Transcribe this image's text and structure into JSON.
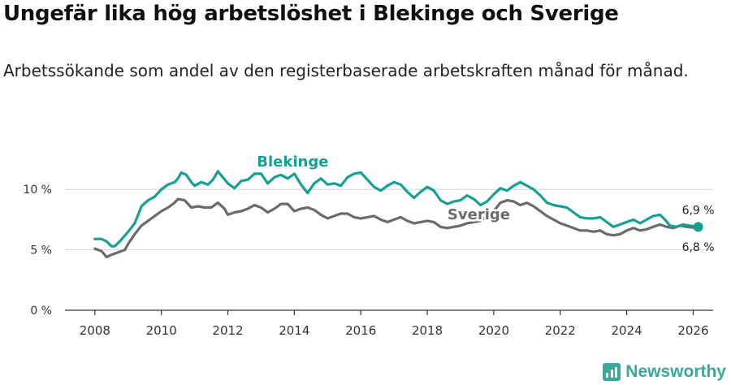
{
  "title": "Ungefär lika hög arbetslöshet i Blekinge och Sverige",
  "subtitle": "Arbetssökande som andel av den registerbaserade arbetskraften månad för månad.",
  "brand": {
    "name": "Newsworthy",
    "icon": "newsworthy-logo-icon",
    "color": "#3aa89a"
  },
  "chart_data": {
    "type": "line",
    "title": "Ungefär lika hög arbetslöshet i Blekinge och Sverige",
    "xlabel": "",
    "ylabel": "",
    "x_range": [
      2007.1,
      2026.6
    ],
    "ylim": [
      0,
      12.5
    ],
    "x_ticks": [
      2008,
      2010,
      2012,
      2014,
      2016,
      2018,
      2020,
      2022,
      2024,
      2026
    ],
    "x_tick_labels": [
      "2008",
      "2010",
      "2012",
      "2014",
      "2016",
      "2018",
      "2020",
      "2022",
      "2024",
      "2026"
    ],
    "y_ticks": [
      0,
      5,
      10
    ],
    "y_tick_labels": [
      "0 %",
      "5 %",
      "10 %"
    ],
    "grid": "horizontal",
    "series": [
      {
        "name": "Blekinge",
        "color": "#16a093",
        "end_label": "6,9 %",
        "points": [
          [
            2008.0,
            5.9
          ],
          [
            2008.2,
            5.9
          ],
          [
            2008.35,
            5.7
          ],
          [
            2008.5,
            5.3
          ],
          [
            2008.6,
            5.3
          ],
          [
            2008.75,
            5.7
          ],
          [
            2009.0,
            6.5
          ],
          [
            2009.2,
            7.2
          ],
          [
            2009.4,
            8.6
          ],
          [
            2009.6,
            9.1
          ],
          [
            2009.8,
            9.4
          ],
          [
            2010.0,
            10.0
          ],
          [
            2010.2,
            10.4
          ],
          [
            2010.4,
            10.6
          ],
          [
            2010.5,
            10.9
          ],
          [
            2010.6,
            11.4
          ],
          [
            2010.75,
            11.2
          ],
          [
            2010.9,
            10.6
          ],
          [
            2011.0,
            10.3
          ],
          [
            2011.2,
            10.6
          ],
          [
            2011.4,
            10.4
          ],
          [
            2011.55,
            10.8
          ],
          [
            2011.7,
            11.5
          ],
          [
            2011.85,
            11.0
          ],
          [
            2012.0,
            10.5
          ],
          [
            2012.2,
            10.1
          ],
          [
            2012.4,
            10.7
          ],
          [
            2012.6,
            10.8
          ],
          [
            2012.8,
            11.3
          ],
          [
            2013.0,
            11.3
          ],
          [
            2013.2,
            10.5
          ],
          [
            2013.4,
            11.0
          ],
          [
            2013.6,
            11.2
          ],
          [
            2013.8,
            10.9
          ],
          [
            2014.0,
            11.3
          ],
          [
            2014.2,
            10.4
          ],
          [
            2014.4,
            9.7
          ],
          [
            2014.6,
            10.5
          ],
          [
            2014.8,
            10.9
          ],
          [
            2015.0,
            10.4
          ],
          [
            2015.2,
            10.5
          ],
          [
            2015.4,
            10.3
          ],
          [
            2015.6,
            11.0
          ],
          [
            2015.8,
            11.3
          ],
          [
            2016.0,
            11.4
          ],
          [
            2016.2,
            10.8
          ],
          [
            2016.4,
            10.2
          ],
          [
            2016.6,
            9.9
          ],
          [
            2016.8,
            10.3
          ],
          [
            2017.0,
            10.6
          ],
          [
            2017.2,
            10.4
          ],
          [
            2017.4,
            9.8
          ],
          [
            2017.6,
            9.3
          ],
          [
            2017.8,
            9.8
          ],
          [
            2018.0,
            10.2
          ],
          [
            2018.2,
            9.9
          ],
          [
            2018.4,
            9.1
          ],
          [
            2018.6,
            8.8
          ],
          [
            2018.8,
            9.0
          ],
          [
            2019.0,
            9.1
          ],
          [
            2019.2,
            9.5
          ],
          [
            2019.4,
            9.2
          ],
          [
            2019.6,
            8.7
          ],
          [
            2019.8,
            9.0
          ],
          [
            2020.0,
            9.6
          ],
          [
            2020.2,
            10.1
          ],
          [
            2020.4,
            9.9
          ],
          [
            2020.6,
            10.3
          ],
          [
            2020.8,
            10.6
          ],
          [
            2021.0,
            10.3
          ],
          [
            2021.2,
            10.0
          ],
          [
            2021.4,
            9.5
          ],
          [
            2021.6,
            8.9
          ],
          [
            2021.8,
            8.7
          ],
          [
            2022.0,
            8.6
          ],
          [
            2022.2,
            8.5
          ],
          [
            2022.4,
            8.1
          ],
          [
            2022.6,
            7.7
          ],
          [
            2022.8,
            7.6
          ],
          [
            2023.0,
            7.6
          ],
          [
            2023.2,
            7.7
          ],
          [
            2023.4,
            7.3
          ],
          [
            2023.6,
            6.9
          ],
          [
            2023.8,
            7.1
          ],
          [
            2024.0,
            7.3
          ],
          [
            2024.2,
            7.5
          ],
          [
            2024.4,
            7.2
          ],
          [
            2024.6,
            7.5
          ],
          [
            2024.8,
            7.8
          ],
          [
            2025.0,
            7.9
          ],
          [
            2025.15,
            7.5
          ],
          [
            2025.3,
            7.0
          ],
          [
            2025.5,
            6.9
          ],
          [
            2025.7,
            7.1
          ],
          [
            2025.9,
            7.0
          ],
          [
            2026.15,
            6.9
          ]
        ]
      },
      {
        "name": "Sverige",
        "color": "#6b6b6b",
        "end_label": "6,8 %",
        "points": [
          [
            2008.0,
            5.1
          ],
          [
            2008.2,
            4.9
          ],
          [
            2008.35,
            4.4
          ],
          [
            2008.5,
            4.6
          ],
          [
            2008.7,
            4.8
          ],
          [
            2008.9,
            5.0
          ],
          [
            2009.0,
            5.5
          ],
          [
            2009.2,
            6.3
          ],
          [
            2009.4,
            7.0
          ],
          [
            2009.6,
            7.4
          ],
          [
            2009.8,
            7.8
          ],
          [
            2010.0,
            8.2
          ],
          [
            2010.2,
            8.5
          ],
          [
            2010.4,
            8.9
          ],
          [
            2010.5,
            9.2
          ],
          [
            2010.7,
            9.1
          ],
          [
            2010.9,
            8.5
          ],
          [
            2011.1,
            8.6
          ],
          [
            2011.3,
            8.5
          ],
          [
            2011.5,
            8.5
          ],
          [
            2011.7,
            8.9
          ],
          [
            2011.9,
            8.4
          ],
          [
            2012.0,
            7.9
          ],
          [
            2012.2,
            8.1
          ],
          [
            2012.4,
            8.2
          ],
          [
            2012.6,
            8.4
          ],
          [
            2012.8,
            8.7
          ],
          [
            2013.0,
            8.5
          ],
          [
            2013.2,
            8.1
          ],
          [
            2013.4,
            8.4
          ],
          [
            2013.6,
            8.8
          ],
          [
            2013.8,
            8.8
          ],
          [
            2014.0,
            8.2
          ],
          [
            2014.2,
            8.4
          ],
          [
            2014.4,
            8.5
          ],
          [
            2014.6,
            8.3
          ],
          [
            2014.8,
            7.9
          ],
          [
            2015.0,
            7.6
          ],
          [
            2015.2,
            7.8
          ],
          [
            2015.4,
            8.0
          ],
          [
            2015.6,
            8.0
          ],
          [
            2015.8,
            7.7
          ],
          [
            2016.0,
            7.6
          ],
          [
            2016.2,
            7.7
          ],
          [
            2016.4,
            7.8
          ],
          [
            2016.6,
            7.5
          ],
          [
            2016.8,
            7.3
          ],
          [
            2017.0,
            7.5
          ],
          [
            2017.2,
            7.7
          ],
          [
            2017.4,
            7.4
          ],
          [
            2017.6,
            7.2
          ],
          [
            2017.8,
            7.3
          ],
          [
            2018.0,
            7.4
          ],
          [
            2018.2,
            7.3
          ],
          [
            2018.4,
            6.9
          ],
          [
            2018.6,
            6.8
          ],
          [
            2018.8,
            6.9
          ],
          [
            2019.0,
            7.0
          ],
          [
            2019.2,
            7.2
          ],
          [
            2019.4,
            7.3
          ],
          [
            2019.6,
            7.4
          ],
          [
            2019.8,
            7.8
          ],
          [
            2020.0,
            8.2
          ],
          [
            2020.2,
            8.9
          ],
          [
            2020.4,
            9.1
          ],
          [
            2020.6,
            9.0
          ],
          [
            2020.8,
            8.7
          ],
          [
            2021.0,
            8.9
          ],
          [
            2021.2,
            8.6
          ],
          [
            2021.4,
            8.2
          ],
          [
            2021.6,
            7.8
          ],
          [
            2021.8,
            7.5
          ],
          [
            2022.0,
            7.2
          ],
          [
            2022.2,
            7.0
          ],
          [
            2022.4,
            6.8
          ],
          [
            2022.6,
            6.6
          ],
          [
            2022.8,
            6.6
          ],
          [
            2023.0,
            6.5
          ],
          [
            2023.2,
            6.6
          ],
          [
            2023.4,
            6.3
          ],
          [
            2023.6,
            6.2
          ],
          [
            2023.8,
            6.3
          ],
          [
            2024.0,
            6.6
          ],
          [
            2024.2,
            6.8
          ],
          [
            2024.4,
            6.6
          ],
          [
            2024.6,
            6.7
          ],
          [
            2024.8,
            6.9
          ],
          [
            2025.0,
            7.1
          ],
          [
            2025.2,
            6.9
          ],
          [
            2025.4,
            6.8
          ],
          [
            2025.6,
            7.0
          ],
          [
            2025.8,
            6.9
          ],
          [
            2026.15,
            6.8
          ]
        ]
      }
    ]
  }
}
